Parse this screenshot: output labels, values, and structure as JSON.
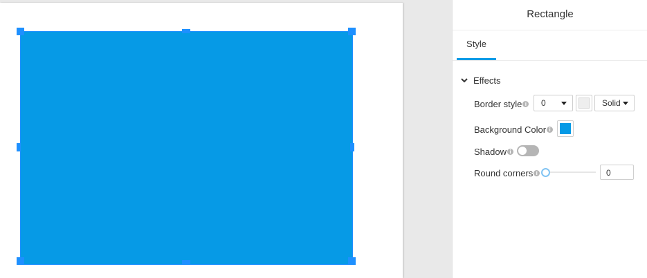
{
  "canvas": {
    "shape_color": "#069ae6",
    "handle_color": "#1e90ff"
  },
  "panel": {
    "title": "Rectangle",
    "tabs": [
      {
        "label": "Style"
      }
    ],
    "effects": {
      "header": "Effects",
      "border_style": {
        "label": "Border style",
        "width_value": "0",
        "color": "#eeeeee",
        "line_style": "Solid"
      },
      "background_color": {
        "label": "Background Color",
        "color": "#069ae6"
      },
      "shadow": {
        "label": "Shadow",
        "enabled": false
      },
      "round_corners": {
        "label": "Round corners",
        "value": "0"
      }
    }
  }
}
